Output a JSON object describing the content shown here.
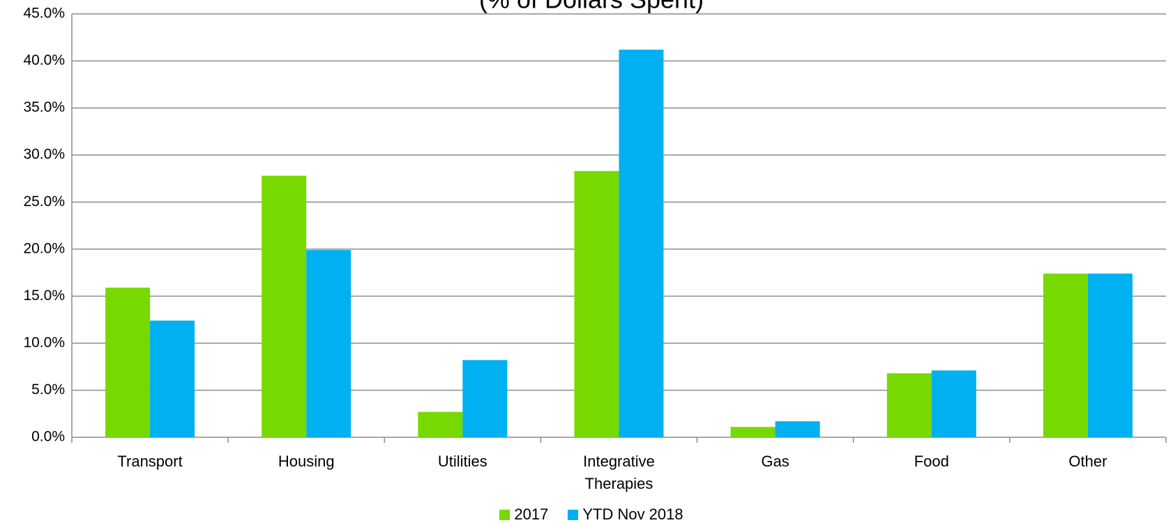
{
  "chart_data": {
    "type": "bar",
    "title": "(% of Dollars Spent)",
    "categories": [
      "Transport",
      "Housing",
      "Utilities",
      "Integrative Therapies",
      "Gas",
      "Food",
      "Other"
    ],
    "series": [
      {
        "name": "2017",
        "color": "#77d900",
        "values": [
          15.9,
          27.8,
          2.7,
          28.3,
          1.1,
          6.8,
          17.4
        ]
      },
      {
        "name": "YTD Nov 2018",
        "color": "#00b0f0",
        "values": [
          12.4,
          19.9,
          8.2,
          41.2,
          1.7,
          7.1,
          17.4
        ]
      }
    ],
    "ylim": [
      0,
      45
    ],
    "yticks": [
      {
        "value": 0,
        "label": "0.0%"
      },
      {
        "value": 5,
        "label": "5.0%"
      },
      {
        "value": 10,
        "label": "10.0%"
      },
      {
        "value": 15,
        "label": "15.0%"
      },
      {
        "value": 20,
        "label": "20.0%"
      },
      {
        "value": 25,
        "label": "25.0%"
      },
      {
        "value": 30,
        "label": "30.0%"
      },
      {
        "value": 35,
        "label": "35.0%"
      },
      {
        "value": 40,
        "label": "40.0%"
      },
      {
        "value": 45,
        "label": "45.0%"
      }
    ],
    "grid": true,
    "legend": "bottom"
  }
}
